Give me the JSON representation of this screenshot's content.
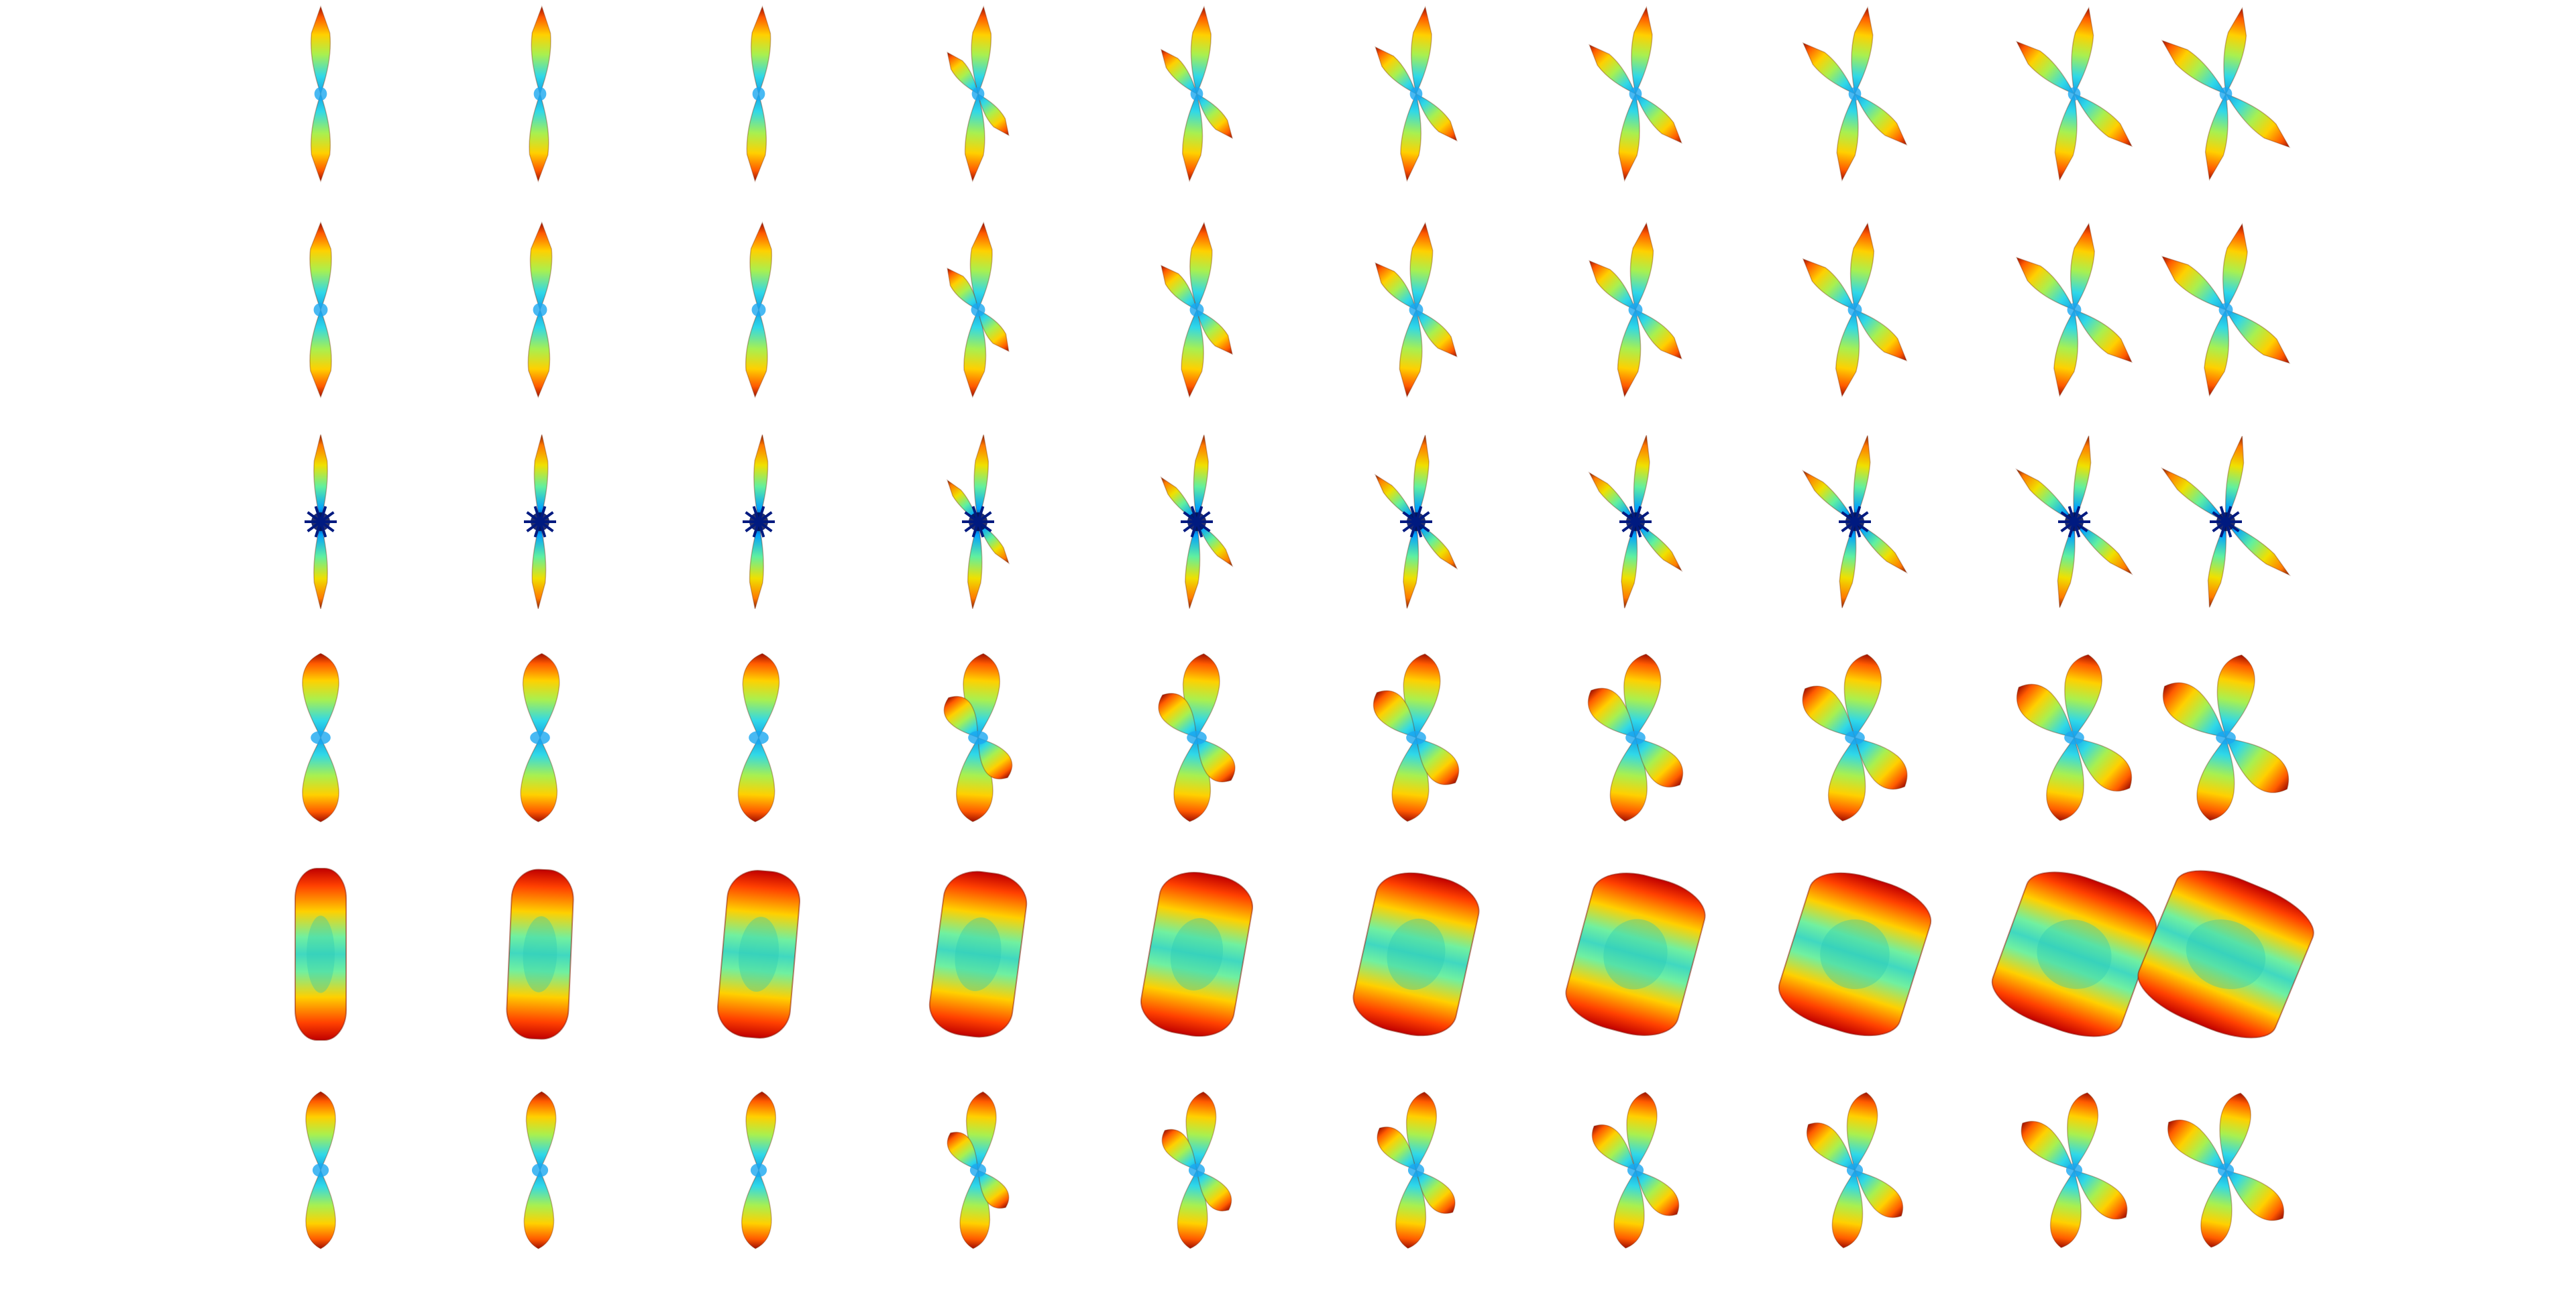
{
  "figure": {
    "background": "#ffffff",
    "rows": [
      {
        "profile": "slender",
        "dark_core": false
      },
      {
        "profile": "slender-wide",
        "dark_core": false
      },
      {
        "profile": "spiky-thin",
        "dark_core": true
      },
      {
        "profile": "lumpy",
        "dark_core": false
      },
      {
        "profile": "ellipsoid",
        "dark_core": false
      },
      {
        "profile": "peanut",
        "dark_core": false
      }
    ],
    "tilt_steps": [
      0,
      0.1,
      0.2,
      0.3,
      0.4,
      0.5,
      0.6,
      0.7,
      0.8,
      0.9
    ],
    "crossing_steps": [
      0,
      0,
      0,
      0.1,
      0.25,
      0.4,
      0.55,
      0.7,
      0.85,
      1.0
    ],
    "colormap": [
      "#00008f",
      "#0050ff",
      "#00c8ff",
      "#40ffbf",
      "#bfff40",
      "#ffd000",
      "#ff5000",
      "#c00000",
      "#800000"
    ]
  }
}
